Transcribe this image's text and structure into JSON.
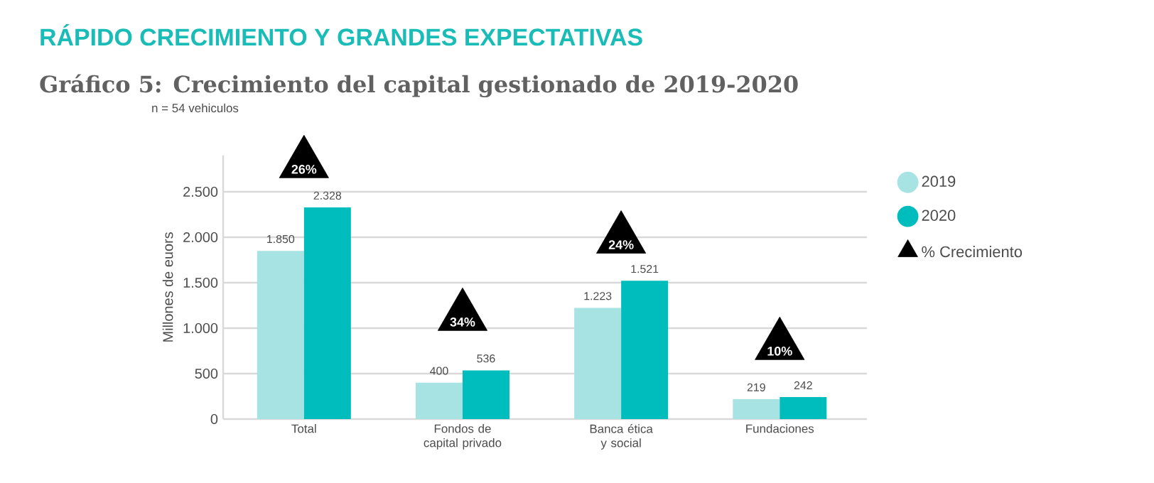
{
  "chart_data": {
    "type": "bar",
    "title": "RÁPIDO CRECIMIENTO Y GRANDES EXPECTATIVAS",
    "subtitle": "Gráfico 5: Crecimiento del capital gestionado de 2019-2020",
    "annotations": [
      "n = 54 vehiculos",
      "26%",
      "34%",
      "24%",
      "10%"
    ],
    "ylabel": "Millones de euors",
    "categories": [
      "Total",
      "Fondos de capital privado",
      "Banca ética y social",
      "Fundaciones"
    ],
    "series": [
      {
        "name": "2019",
        "color": "#a8e3e3",
        "values": [
          1850,
          400,
          1223,
          219
        ],
        "value_labels": [
          "1.850",
          "400",
          "1.223",
          "219"
        ]
      },
      {
        "name": "2020",
        "color": "#00bdbd",
        "values": [
          2328,
          536,
          1521,
          242
        ],
        "value_labels": [
          "2.328",
          "536",
          "1.521",
          "242"
        ]
      },
      {
        "name": "% Crecimiento",
        "type": "scatter",
        "marker": "triangle",
        "color": "#000000",
        "values": [
          2810,
          1130,
          1980,
          810
        ]
      }
    ],
    "ylim": [
      0,
      2900
    ],
    "yticks": [
      0,
      500,
      {
        "value": 1000,
        "label": "1.000"
      },
      {
        "value": 1500,
        "label": "1.500"
      },
      {
        "value": 2000,
        "label": "2.000"
      },
      {
        "value": 2500,
        "label": "2.500"
      }
    ],
    "grid": "y",
    "legend": "right"
  }
}
